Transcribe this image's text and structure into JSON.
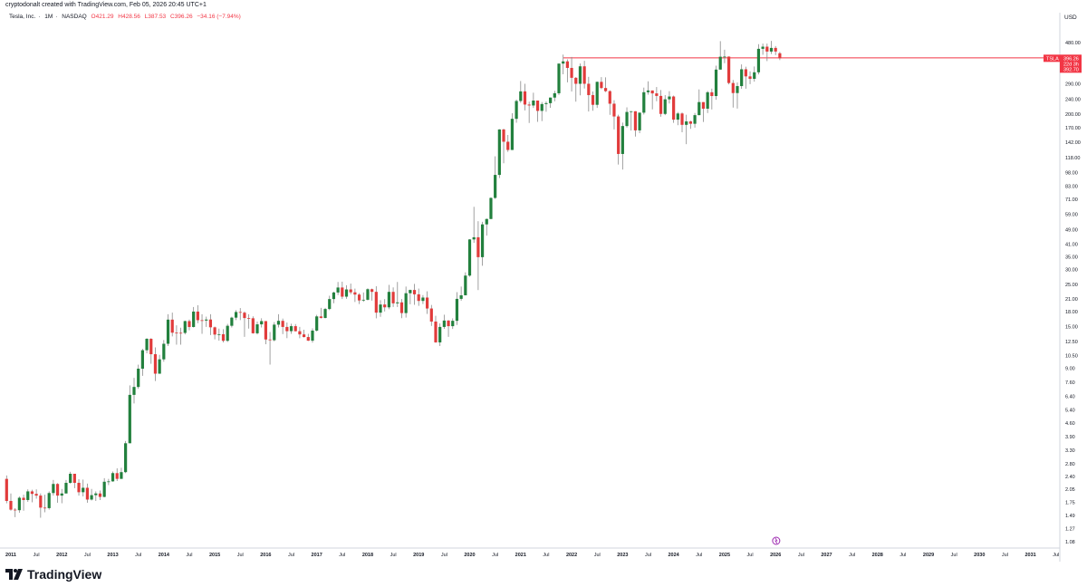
{
  "header": {
    "credit": "cryptodonalt created with TradingView.com, Feb 05, 2026 20:45 UTC+1",
    "symbol_name": "Tesla, Inc.",
    "timeframe": "1M",
    "exchange": "NASDAQ",
    "open": "O421.29",
    "high": "H428.56",
    "low": "L387.53",
    "close": "C396.26",
    "change": "−34.16 (−7.94%)"
  },
  "price_axis": {
    "currency": "USD",
    "ticks": [
      "480.00",
      "290.00",
      "240.00",
      "200.00",
      "170.00",
      "142.00",
      "118.00",
      "98.00",
      "83.00",
      "71.00",
      "59.00",
      "49.00",
      "41.00",
      "35.00",
      "30.00",
      "25.00",
      "21.00",
      "18.00",
      "15.00",
      "12.50",
      "10.50",
      "9.00",
      "7.60",
      "6.40",
      "5.40",
      "4.60",
      "3.90",
      "3.30",
      "2.80",
      "2.40",
      "2.05",
      "1.75",
      "1.49",
      "1.27",
      "1.08"
    ]
  },
  "price_label": {
    "symbol": "TSLA",
    "last_price": "396.26",
    "countdown": "22d 3h",
    "secondary_price": "392.70",
    "color": "#f23645"
  },
  "time_axis": {
    "labels": [
      "2011",
      "Jul",
      "2012",
      "Jul",
      "2013",
      "Jul",
      "2014",
      "Jul",
      "2015",
      "Jul",
      "2016",
      "Jul",
      "2017",
      "Jul",
      "2018",
      "Jul",
      "2019",
      "Jul",
      "2020",
      "Jul",
      "2021",
      "Jul",
      "2022",
      "Jul",
      "2023",
      "Jul",
      "2024",
      "Jul",
      "2025",
      "Jul",
      "2026",
      "Jul",
      "2027",
      "Jul",
      "2028",
      "Jul",
      "2029",
      "Jul",
      "2030",
      "Jul",
      "2031",
      "Jul"
    ]
  },
  "branding": {
    "logo_text": "TradingView",
    "logo_icon": "tradingview-logo-icon"
  },
  "event_marker": {
    "icon": "event-marker-icon",
    "color": "#9c27b0"
  },
  "colors": {
    "up": "#22803d",
    "down": "#e13b3b",
    "wick": "#8a8a8a",
    "line": "#f23645"
  },
  "chart_data": {
    "type": "candlestick",
    "title": "Tesla, Inc. - 1M - NASDAQ",
    "y_scale": "log",
    "ylim": [
      1.0,
      560
    ],
    "xlim": [
      "2010-12",
      "2031-07"
    ],
    "grid": false,
    "horizontal_ray": {
      "from": "2021-11",
      "price": 398
    },
    "columns": [
      "month",
      "open",
      "high",
      "low",
      "close"
    ],
    "candles": [
      [
        "2010-12",
        2.33,
        2.43,
        1.73,
        1.78
      ],
      [
        "2011-01",
        1.78,
        1.95,
        1.58,
        1.6
      ],
      [
        "2011-02",
        1.6,
        1.63,
        1.46,
        1.59
      ],
      [
        "2011-03",
        1.59,
        1.88,
        1.54,
        1.85
      ],
      [
        "2011-04",
        1.85,
        1.92,
        1.58,
        1.8
      ],
      [
        "2011-05",
        1.8,
        2.05,
        1.76,
        2.0
      ],
      [
        "2011-06",
        2.0,
        2.04,
        1.75,
        1.94
      ],
      [
        "2011-07",
        1.94,
        2.05,
        1.83,
        1.9
      ],
      [
        "2011-08",
        1.9,
        1.95,
        1.45,
        1.64
      ],
      [
        "2011-09",
        1.64,
        1.92,
        1.55,
        1.63
      ],
      [
        "2011-10",
        1.63,
        2.0,
        1.6,
        1.96
      ],
      [
        "2011-11",
        1.96,
        2.3,
        1.9,
        2.19
      ],
      [
        "2011-12",
        2.19,
        2.21,
        1.74,
        1.9
      ],
      [
        "2012-01",
        1.9,
        2.06,
        1.73,
        1.95
      ],
      [
        "2012-02",
        1.95,
        2.3,
        1.95,
        2.22
      ],
      [
        "2012-03",
        2.22,
        2.54,
        2.2,
        2.48
      ],
      [
        "2012-04",
        2.48,
        2.48,
        2.08,
        2.22
      ],
      [
        "2012-05",
        2.22,
        2.32,
        1.9,
        1.98
      ],
      [
        "2012-06",
        1.98,
        2.31,
        1.88,
        2.09
      ],
      [
        "2012-07",
        2.09,
        2.2,
        1.74,
        1.81
      ],
      [
        "2012-08",
        1.81,
        2.06,
        1.79,
        1.91
      ],
      [
        "2012-09",
        1.91,
        2.0,
        1.78,
        1.95
      ],
      [
        "2012-10",
        1.95,
        2.02,
        1.8,
        1.87
      ],
      [
        "2012-11",
        1.87,
        2.35,
        1.86,
        2.25
      ],
      [
        "2012-12",
        2.25,
        2.33,
        2.16,
        2.26
      ],
      [
        "2013-01",
        2.26,
        2.55,
        2.25,
        2.5
      ],
      [
        "2013-02",
        2.5,
        2.65,
        2.27,
        2.33
      ],
      [
        "2013-03",
        2.33,
        2.67,
        2.33,
        2.53
      ],
      [
        "2013-04",
        2.53,
        3.7,
        2.5,
        3.6
      ],
      [
        "2013-05",
        3.6,
        7.3,
        3.6,
        6.5
      ],
      [
        "2013-06",
        6.5,
        8.0,
        5.85,
        7.16
      ],
      [
        "2013-07",
        7.16,
        9.4,
        7.0,
        8.95
      ],
      [
        "2013-08",
        8.95,
        11.4,
        8.2,
        11.21
      ],
      [
        "2013-09",
        11.21,
        12.99,
        10.8,
        12.89
      ],
      [
        "2013-10",
        12.89,
        12.99,
        9.5,
        10.68
      ],
      [
        "2013-11",
        10.68,
        11.6,
        7.7,
        8.42
      ],
      [
        "2013-12",
        8.42,
        10.6,
        8.4,
        10.03
      ],
      [
        "2014-01",
        10.03,
        12.7,
        9.75,
        12.13
      ],
      [
        "2014-02",
        12.13,
        17.4,
        11.8,
        16.29
      ],
      [
        "2014-03",
        16.29,
        17.75,
        13.27,
        13.89
      ],
      [
        "2014-04",
        13.89,
        15.2,
        12.0,
        13.87
      ],
      [
        "2014-05",
        13.87,
        14.77,
        11.99,
        13.85
      ],
      [
        "2014-06",
        13.85,
        16.1,
        13.6,
        16.0
      ],
      [
        "2014-07",
        16.0,
        16.3,
        14.3,
        14.89
      ],
      [
        "2014-08",
        14.89,
        19.0,
        14.8,
        17.97
      ],
      [
        "2014-09",
        17.97,
        19.43,
        15.6,
        16.18
      ],
      [
        "2014-10",
        16.18,
        17.4,
        13.7,
        16.11
      ],
      [
        "2014-11",
        16.11,
        16.9,
        14.9,
        16.31
      ],
      [
        "2014-12",
        16.31,
        17.4,
        13.5,
        14.83
      ],
      [
        "2015-01",
        14.83,
        14.97,
        12.8,
        13.57
      ],
      [
        "2015-02",
        13.57,
        14.6,
        12.6,
        13.63
      ],
      [
        "2015-03",
        13.63,
        14.5,
        12.33,
        12.58
      ],
      [
        "2015-04",
        12.58,
        15.46,
        12.4,
        15.11
      ],
      [
        "2015-05",
        15.11,
        16.88,
        14.8,
        16.69
      ],
      [
        "2015-06",
        16.69,
        18.3,
        16.2,
        17.88
      ],
      [
        "2015-07",
        17.88,
        18.76,
        16.2,
        17.73
      ],
      [
        "2015-08",
        17.73,
        17.98,
        13.2,
        16.61
      ],
      [
        "2015-09",
        16.61,
        17.4,
        14.6,
        16.56
      ],
      [
        "2015-10",
        16.56,
        16.96,
        13.73,
        13.79
      ],
      [
        "2015-11",
        13.79,
        15.9,
        13.59,
        15.38
      ],
      [
        "2015-12",
        15.38,
        16.56,
        14.8,
        16.0
      ],
      [
        "2016-01",
        16.0,
        16.0,
        12.06,
        12.78
      ],
      [
        "2016-02",
        12.78,
        14.0,
        9.4,
        12.67
      ],
      [
        "2016-03",
        12.67,
        15.8,
        12.5,
        15.32
      ],
      [
        "2016-04",
        15.32,
        17.4,
        14.8,
        16.05
      ],
      [
        "2016-05",
        16.05,
        16.5,
        13.65,
        14.9
      ],
      [
        "2016-06",
        14.9,
        15.73,
        12.99,
        14.15
      ],
      [
        "2016-07",
        14.15,
        15.5,
        13.7,
        15.04
      ],
      [
        "2016-08",
        15.04,
        15.43,
        14.1,
        14.14
      ],
      [
        "2016-09",
        14.14,
        14.9,
        12.98,
        13.6
      ],
      [
        "2016-10",
        13.6,
        14.4,
        13.1,
        13.17
      ],
      [
        "2016-11",
        13.17,
        13.7,
        12.55,
        12.6
      ],
      [
        "2016-12",
        12.6,
        14.63,
        12.3,
        14.25
      ],
      [
        "2017-01",
        14.25,
        17.27,
        14.1,
        16.94
      ],
      [
        "2017-02",
        16.94,
        18.81,
        16.5,
        16.63
      ],
      [
        "2017-03",
        16.63,
        18.81,
        16.53,
        18.55
      ],
      [
        "2017-04",
        18.55,
        21.8,
        18.3,
        20.94
      ],
      [
        "2017-05",
        20.94,
        22.9,
        19.9,
        22.69
      ],
      [
        "2017-06",
        22.69,
        25.8,
        22.0,
        24.11
      ],
      [
        "2017-07",
        24.11,
        25.9,
        20.95,
        21.56
      ],
      [
        "2017-08",
        21.56,
        24.8,
        21.0,
        23.55
      ],
      [
        "2017-09",
        23.55,
        25.3,
        22.2,
        22.74
      ],
      [
        "2017-10",
        22.74,
        23.8,
        20.2,
        22.12
      ],
      [
        "2017-11",
        22.12,
        22.5,
        19.7,
        20.59
      ],
      [
        "2017-12",
        20.59,
        22.7,
        20.25,
        20.76
      ],
      [
        "2018-01",
        20.76,
        23.9,
        20.6,
        23.62
      ],
      [
        "2018-02",
        23.62,
        23.8,
        20.55,
        22.87
      ],
      [
        "2018-03",
        22.87,
        24.5,
        16.55,
        17.74
      ],
      [
        "2018-04",
        17.74,
        20.65,
        16.85,
        19.59
      ],
      [
        "2018-05",
        19.59,
        20.93,
        18.0,
        18.93
      ],
      [
        "2018-06",
        18.93,
        24.9,
        18.5,
        22.86
      ],
      [
        "2018-07",
        22.86,
        24.14,
        19.0,
        19.88
      ],
      [
        "2018-08",
        19.88,
        25.8,
        19.0,
        20.11
      ],
      [
        "2018-09",
        20.11,
        20.95,
        16.57,
        17.65
      ],
      [
        "2018-10",
        17.65,
        24.4,
        16.7,
        22.49
      ],
      [
        "2018-11",
        22.49,
        23.5,
        19.65,
        23.4
      ],
      [
        "2018-12",
        23.4,
        25.2,
        19.53,
        22.19
      ],
      [
        "2019-01",
        22.19,
        23.8,
        19.27,
        20.47
      ],
      [
        "2019-02",
        20.47,
        21.97,
        19.7,
        21.33
      ],
      [
        "2019-03",
        21.33,
        23.02,
        17.46,
        18.66
      ],
      [
        "2019-04",
        18.66,
        19.49,
        15.08,
        15.91
      ],
      [
        "2019-05",
        15.91,
        17.06,
        12.29,
        12.34
      ],
      [
        "2019-06",
        12.34,
        15.56,
        11.8,
        14.9
      ],
      [
        "2019-07",
        14.9,
        17.3,
        14.56,
        16.11
      ],
      [
        "2019-08",
        16.11,
        16.2,
        13.2,
        15.04
      ],
      [
        "2019-09",
        15.04,
        16.54,
        14.54,
        16.06
      ],
      [
        "2019-10",
        16.06,
        22.8,
        15.27,
        20.99
      ],
      [
        "2019-11",
        20.99,
        24.4,
        20.53,
        21.93
      ],
      [
        "2019-12",
        21.93,
        29.02,
        21.9,
        27.89
      ],
      [
        "2020-01",
        27.89,
        43.53,
        27.5,
        43.37
      ],
      [
        "2020-02",
        43.37,
        64.6,
        41.6,
        44.53
      ],
      [
        "2020-03",
        44.53,
        54.2,
        23.37,
        34.93
      ],
      [
        "2020-04",
        34.93,
        53.8,
        31.47,
        52.13
      ],
      [
        "2020-05",
        52.13,
        56.0,
        45.45,
        55.67
      ],
      [
        "2020-06",
        55.67,
        72.5,
        55.6,
        72.01
      ],
      [
        "2020-07",
        72.01,
        119.67,
        71.2,
        95.38
      ],
      [
        "2020-08",
        95.38,
        166.71,
        91.76,
        166.11
      ],
      [
        "2020-09",
        166.11,
        167.5,
        109.96,
        143.0
      ],
      [
        "2020-10",
        143.0,
        155.3,
        126.37,
        129.35
      ],
      [
        "2020-11",
        129.35,
        202.6,
        129.3,
        189.2
      ],
      [
        "2020-12",
        189.2,
        239.57,
        180.4,
        235.22
      ],
      [
        "2021-01",
        235.22,
        300.13,
        230.0,
        264.51
      ],
      [
        "2021-02",
        264.51,
        290.0,
        209.7,
        225.17
      ],
      [
        "2021-03",
        225.17,
        233.33,
        179.83,
        222.64
      ],
      [
        "2021-04",
        222.64,
        260.26,
        216.0,
        236.48
      ],
      [
        "2021-05",
        236.48,
        236.5,
        182.33,
        208.41
      ],
      [
        "2021-06",
        208.41,
        232.2,
        184.0,
        226.57
      ],
      [
        "2021-07",
        226.57,
        234.0,
        206.33,
        229.07
      ],
      [
        "2021-08",
        229.07,
        245.4,
        216.33,
        245.24
      ],
      [
        "2021-09",
        245.24,
        266.33,
        234.33,
        258.49
      ],
      [
        "2021-10",
        258.49,
        371.74,
        253.0,
        371.33
      ],
      [
        "2021-11",
        371.33,
        414.5,
        326.0,
        381.59
      ],
      [
        "2021-12",
        381.59,
        390.95,
        295.37,
        352.26
      ],
      [
        "2022-01",
        352.26,
        402.67,
        264.0,
        312.24
      ],
      [
        "2022-02",
        312.24,
        315.0,
        233.33,
        290.14
      ],
      [
        "2022-03",
        290.14,
        371.59,
        252.0,
        359.2
      ],
      [
        "2022-04",
        359.2,
        384.29,
        273.9,
        290.25
      ],
      [
        "2022-05",
        290.25,
        315.92,
        206.86,
        252.75
      ],
      [
        "2022-06",
        252.75,
        264.21,
        208.69,
        224.47
      ],
      [
        "2022-07",
        224.47,
        298.32,
        216.17,
        297.15
      ],
      [
        "2022-08",
        297.15,
        314.67,
        271.81,
        275.61
      ],
      [
        "2022-09",
        275.61,
        313.8,
        262.47,
        265.25
      ],
      [
        "2022-10",
        265.25,
        268.0,
        198.59,
        227.54
      ],
      [
        "2022-11",
        227.54,
        237.4,
        166.19,
        194.7
      ],
      [
        "2022-12",
        194.7,
        198.92,
        108.24,
        123.18
      ],
      [
        "2023-01",
        123.18,
        180.68,
        101.81,
        173.22
      ],
      [
        "2023-02",
        173.22,
        217.65,
        169.93,
        205.71
      ],
      [
        "2023-03",
        205.71,
        207.79,
        163.91,
        207.46
      ],
      [
        "2023-04",
        207.46,
        207.79,
        152.37,
        164.31
      ],
      [
        "2023-05",
        164.31,
        204.48,
        158.83,
        203.93
      ],
      [
        "2023-06",
        203.93,
        276.99,
        199.37,
        261.77
      ],
      [
        "2023-07",
        261.77,
        299.29,
        254.12,
        267.43
      ],
      [
        "2023-08",
        267.43,
        267.43,
        212.36,
        258.08
      ],
      [
        "2023-09",
        258.08,
        278.98,
        234.58,
        250.22
      ],
      [
        "2023-10",
        250.22,
        268.94,
        194.07,
        200.84
      ],
      [
        "2023-11",
        200.84,
        252.75,
        197.85,
        240.08
      ],
      [
        "2023-12",
        240.08,
        265.13,
        228.2,
        248.48
      ],
      [
        "2024-01",
        248.48,
        251.25,
        180.06,
        187.29
      ],
      [
        "2024-02",
        187.29,
        205.6,
        175.01,
        201.88
      ],
      [
        "2024-03",
        201.88,
        204.52,
        160.51,
        175.79
      ],
      [
        "2024-04",
        175.79,
        198.87,
        138.8,
        183.28
      ],
      [
        "2024-05",
        183.28,
        184.9,
        167.41,
        178.08
      ],
      [
        "2024-06",
        178.08,
        203.2,
        170.0,
        197.88
      ],
      [
        "2024-07",
        197.88,
        271.0,
        197.53,
        232.07
      ],
      [
        "2024-08",
        232.07,
        232.07,
        182.0,
        214.11
      ],
      [
        "2024-09",
        214.11,
        265.86,
        203.0,
        261.63
      ],
      [
        "2024-10",
        261.63,
        273.54,
        212.11,
        249.85
      ],
      [
        "2024-11",
        249.85,
        361.93,
        238.88,
        345.16
      ],
      [
        "2024-12",
        345.16,
        488.54,
        345.0,
        403.84
      ],
      [
        "2025-01",
        403.84,
        439.74,
        373.04,
        404.6
      ],
      [
        "2025-02",
        404.6,
        405.0,
        288.0,
        292.98
      ],
      [
        "2025-03",
        292.98,
        303.94,
        217.02,
        259.16
      ],
      [
        "2025-04",
        259.16,
        294.86,
        214.25,
        282.16
      ],
      [
        "2025-05",
        282.16,
        367.71,
        273.0,
        346.46
      ],
      [
        "2025-06",
        346.46,
        357.54,
        273.21,
        317.66
      ],
      [
        "2025-07",
        317.66,
        338.0,
        288.77,
        308.27
      ],
      [
        "2025-08",
        308.27,
        358.5,
        297.82,
        333.87
      ],
      [
        "2025-09",
        333.87,
        470.75,
        325.6,
        444.72
      ],
      [
        "2025-10",
        444.72,
        474.07,
        413.49,
        456.56
      ],
      [
        "2025-11",
        456.56,
        474.0,
        382.78,
        430.17
      ],
      [
        "2025-12",
        430.17,
        489.88,
        417.4,
        449.72
      ],
      [
        "2026-01",
        449.72,
        460.0,
        412.0,
        430.41
      ],
      [
        "2026-02",
        421.29,
        428.56,
        387.53,
        396.26
      ]
    ]
  }
}
